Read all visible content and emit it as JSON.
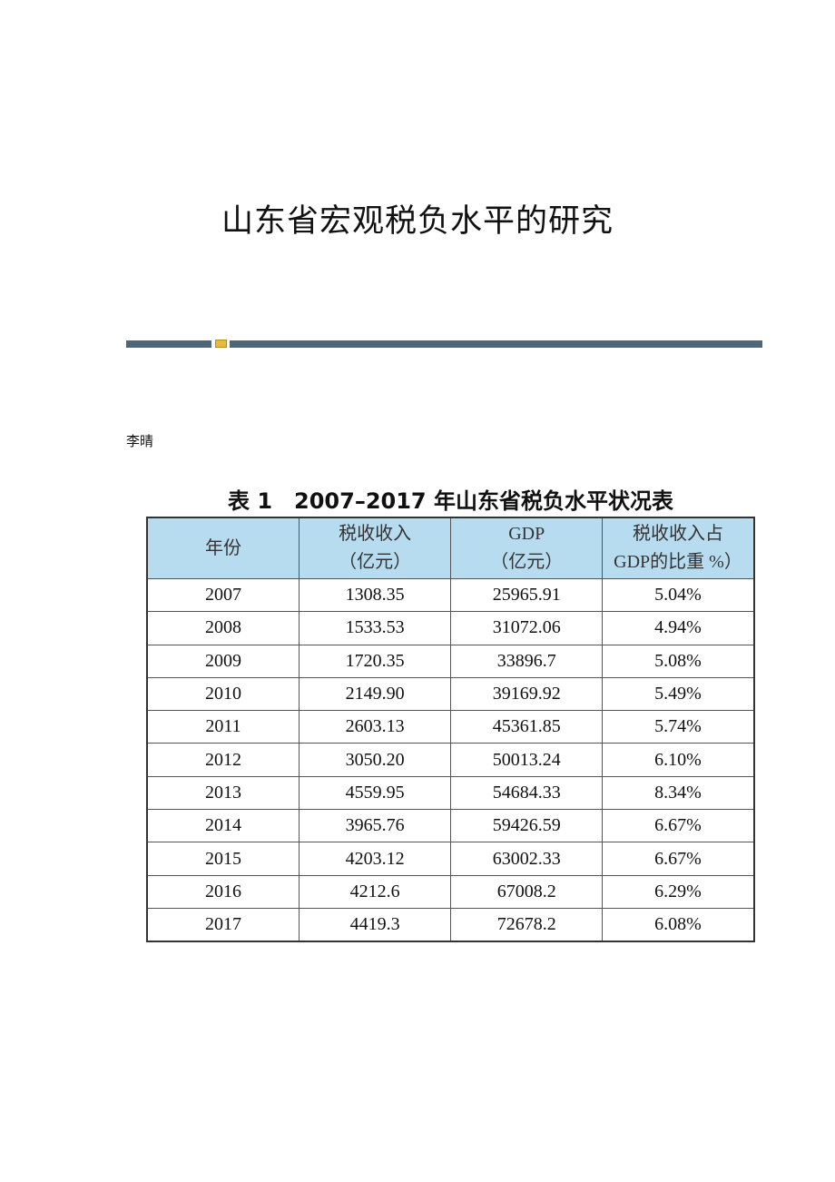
{
  "title": "山东省宏观税负水平的研究",
  "author": "李晴",
  "table": {
    "caption": "表 1　2007–2017 年山东省税负水平状况表",
    "headers": [
      [
        "年份"
      ],
      [
        "税收收入",
        "（亿元）"
      ],
      [
        "GDP",
        "（亿元）"
      ],
      [
        "税收收入占",
        "GDP的比重 %）"
      ]
    ],
    "rows": [
      [
        "2007",
        "1308.35",
        "25965.91",
        "5.04%"
      ],
      [
        "2008",
        "1533.53",
        "31072.06",
        "4.94%"
      ],
      [
        "2009",
        "1720.35",
        "33896.7",
        "5.08%"
      ],
      [
        "2010",
        "2149.90",
        "39169.92",
        "5.49%"
      ],
      [
        "2011",
        "2603.13",
        "45361.85",
        "5.74%"
      ],
      [
        "2012",
        "3050.20",
        "50013.24",
        "6.10%"
      ],
      [
        "2013",
        "4559.95",
        "54684.33",
        "8.34%"
      ],
      [
        "2014",
        "3965.76",
        "59426.59",
        "6.67%"
      ],
      [
        "2015",
        "4203.12",
        "63002.33",
        "6.67%"
      ],
      [
        "2016",
        "4212.6",
        "67008.2",
        "6.29%"
      ],
      [
        "2017",
        "4419.3",
        "72678.2",
        "6.08%"
      ]
    ]
  }
}
